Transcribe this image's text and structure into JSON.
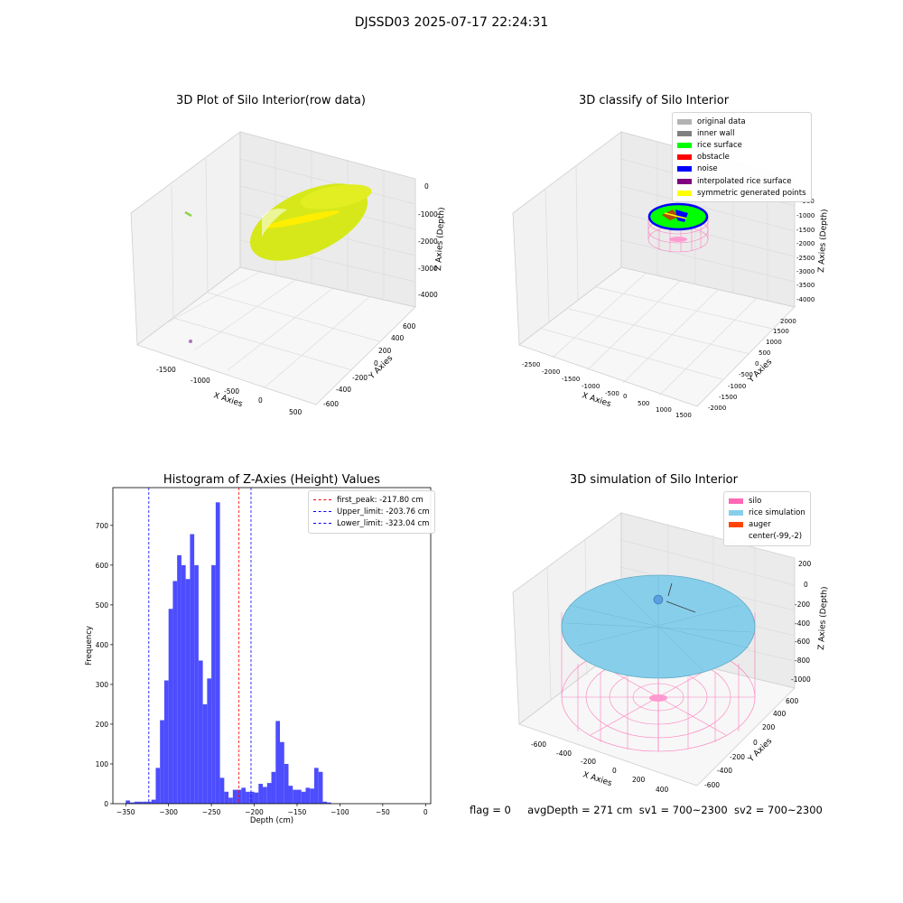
{
  "suptitle": "DJSSD03 2025-07-17 22:24:31",
  "panels": {
    "raw": {
      "title": "3D Plot of Silo Interior(row data)",
      "xlabel": "X Axies",
      "ylabel": "Y Axies",
      "zlabel": "Z Axies (Depth)",
      "xticks": [
        "-1500",
        "-1000",
        "-500",
        "0",
        "500"
      ],
      "yticks": [
        "-600",
        "-400",
        "-200",
        "0",
        "200",
        "400",
        "600"
      ],
      "zticks": [
        "0",
        "-1000",
        "-2000",
        "-3000",
        "-4000"
      ]
    },
    "classify": {
      "title": "3D classify of Silo Interior",
      "xlabel": "X Axies",
      "ylabel": "Y Axies",
      "zlabel": "Z Axies (Depth)",
      "xticks": [
        "-2500",
        "-2000",
        "-1500",
        "-1000",
        "-500",
        "0",
        "500",
        "1000",
        "1500"
      ],
      "yticks": [
        "-2000",
        "-1500",
        "-1000",
        "-500",
        "0",
        "500",
        "1000",
        "1500",
        "2000"
      ],
      "zticks": [
        "-500",
        "-1000",
        "-1500",
        "-2000",
        "-2500",
        "-3000",
        "-3500",
        "-4000"
      ],
      "legend": [
        {
          "label": "original data",
          "color": "#b3b3b3"
        },
        {
          "label": "inner wall",
          "color": "#808080"
        },
        {
          "label": "rice surface",
          "color": "#00ff00"
        },
        {
          "label": "obstacle",
          "color": "#ff0000"
        },
        {
          "label": "noise",
          "color": "#0000ff"
        },
        {
          "label": "interpolated rice surface",
          "color": "#800080"
        },
        {
          "label": "symmetric generated points",
          "color": "#ffff00"
        }
      ]
    },
    "simulation": {
      "title": "3D simulation of Silo Interior",
      "xlabel": "X Axies",
      "ylabel": "Y Axies",
      "zlabel": "Z Axies (Depth)",
      "xticks": [
        "-600",
        "-400",
        "-200",
        "0",
        "200",
        "400"
      ],
      "yticks": [
        "-600",
        "-400",
        "-200",
        "0",
        "200",
        "400",
        "600"
      ],
      "zticks": [
        "200",
        "0",
        "-200",
        "-400",
        "-600",
        "-800",
        "-1000"
      ],
      "legend": [
        {
          "label": "silo",
          "color": "#ff69b4"
        },
        {
          "label": "rice simulation",
          "color": "#87ceeb"
        },
        {
          "label": "auger",
          "color": "#ff4500"
        },
        {
          "label": "center(-99,-2)",
          "color": "#ffffff"
        }
      ]
    }
  },
  "chart_data": {
    "type": "bar",
    "title": "Histogram of Z-Axies (Height) Values",
    "xlabel": "Depth (cm)",
    "ylabel": "Frequency",
    "xlim": [
      -365,
      6
    ],
    "ylim": [
      0,
      795
    ],
    "xticks": [
      -350,
      -300,
      -250,
      -200,
      -150,
      -100,
      -50,
      0
    ],
    "yticks": [
      0,
      100,
      200,
      300,
      400,
      500,
      600,
      700
    ],
    "bar_color": "#4d4dff",
    "bin_width": 5,
    "bins_start": [
      -350,
      -345,
      -340,
      -335,
      -330,
      -325,
      -320,
      -315,
      -310,
      -305,
      -300,
      -295,
      -290,
      -285,
      -280,
      -275,
      -270,
      -265,
      -260,
      -255,
      -250,
      -245,
      -240,
      -235,
      -230,
      -225,
      -220,
      -215,
      -210,
      -205,
      -200,
      -195,
      -190,
      -185,
      -180,
      -175,
      -170,
      -165,
      -160,
      -155,
      -150,
      -145,
      -140,
      -135,
      -130,
      -125,
      -120,
      -115,
      -110,
      -105,
      -100,
      -95,
      -90,
      -85,
      -80,
      -75,
      -70,
      -65,
      -60,
      -55,
      -50,
      -45,
      -40,
      -35
    ],
    "counts": [
      8,
      3,
      5,
      5,
      5,
      5,
      10,
      90,
      210,
      310,
      490,
      560,
      625,
      600,
      565,
      678,
      600,
      360,
      250,
      315,
      600,
      758,
      65,
      30,
      15,
      35,
      35,
      40,
      30,
      30,
      28,
      50,
      42,
      52,
      80,
      208,
      155,
      100,
      45,
      35,
      35,
      30,
      40,
      38,
      90,
      80,
      5,
      3,
      0,
      0,
      0,
      0,
      0,
      0,
      0,
      0,
      0,
      0,
      0,
      0,
      0,
      0,
      0,
      0
    ],
    "lines": [
      {
        "label": "first_peak: -217.80 cm",
        "x": -217.8,
        "color": "#ff0000"
      },
      {
        "label": "Upper_limit: -203.76 cm",
        "x": -203.76,
        "color": "#0000ff"
      },
      {
        "label": "Lower_limit: -323.04 cm",
        "x": -323.04,
        "color": "#0000ff"
      }
    ]
  },
  "status": {
    "flag": "flag = 0",
    "avg": "avgDepth = 271 cm",
    "sv1": "sv1 = 700~2300",
    "sv2": "sv2 = 700~2300"
  }
}
